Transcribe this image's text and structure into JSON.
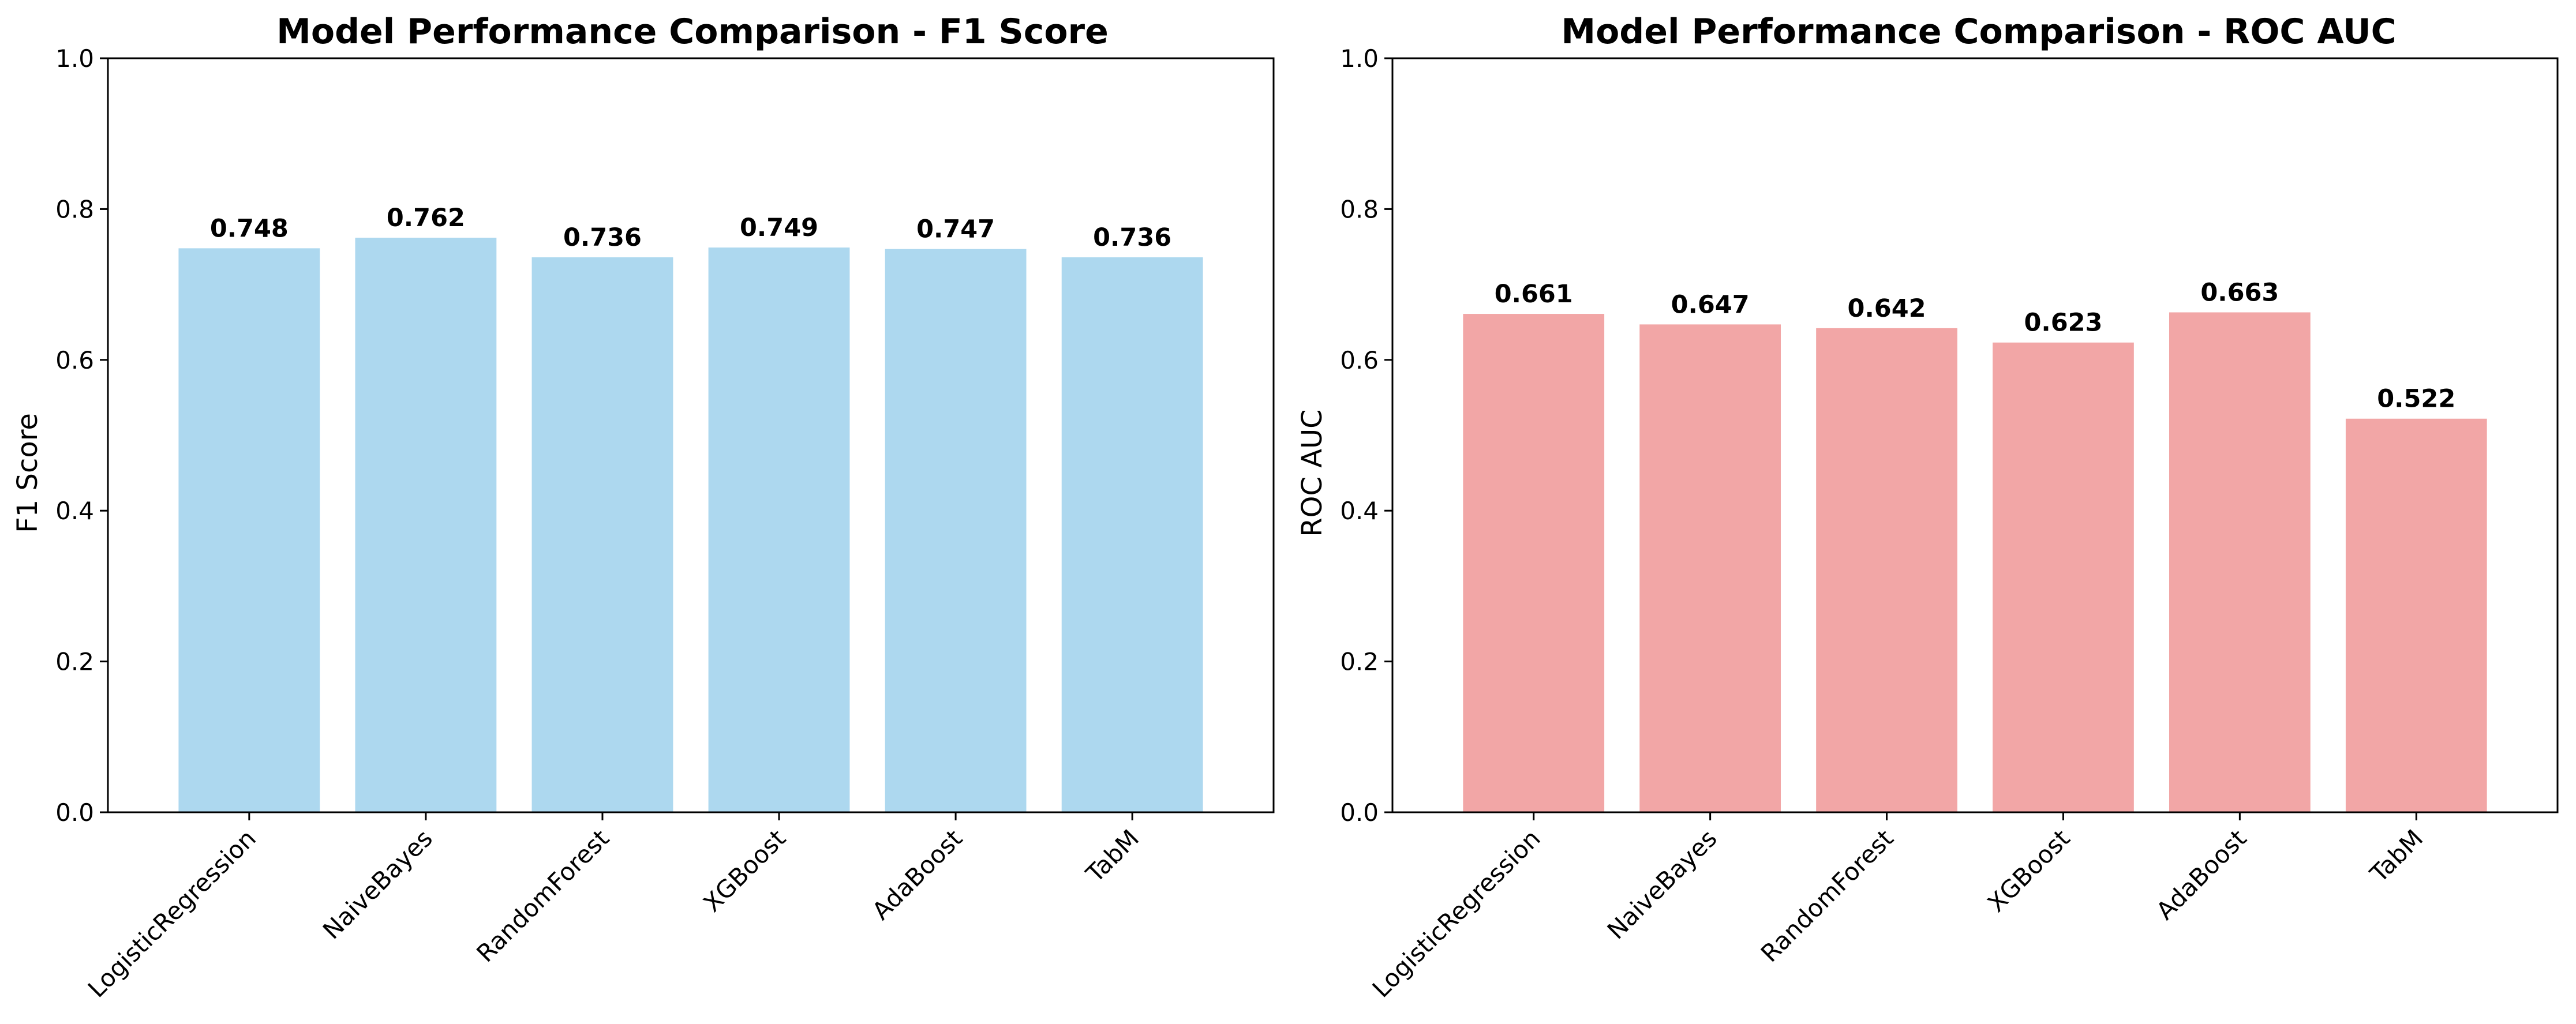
{
  "chart_data": [
    {
      "type": "bar",
      "title": "Model Performance Comparison - F1 Score",
      "xlabel": "",
      "ylabel": "F1 Score",
      "categories": [
        "LogisticRegression",
        "NaiveBayes",
        "RandomForest",
        "XGBoost",
        "AdaBoost",
        "TabM"
      ],
      "values": [
        0.748,
        0.762,
        0.736,
        0.749,
        0.747,
        0.736
      ],
      "data_labels": [
        "0.748",
        "0.762",
        "0.736",
        "0.749",
        "0.747",
        "0.736"
      ],
      "ylim": [
        0,
        1.0
      ],
      "yticks": [
        "0.0",
        "0.2",
        "0.4",
        "0.6",
        "0.8",
        "1.0"
      ],
      "yticks_values": [
        0,
        0.2,
        0.4,
        0.6,
        0.8,
        1.0
      ],
      "bar_color": "#add8ef",
      "grid": false,
      "xtick_rotation": 45
    },
    {
      "type": "bar",
      "title": "Model Performance Comparison - ROC AUC",
      "xlabel": "",
      "ylabel": "ROC AUC",
      "categories": [
        "LogisticRegression",
        "NaiveBayes",
        "RandomForest",
        "XGBoost",
        "AdaBoost",
        "TabM"
      ],
      "values": [
        0.661,
        0.647,
        0.642,
        0.623,
        0.663,
        0.522
      ],
      "data_labels": [
        "0.661",
        "0.647",
        "0.642",
        "0.623",
        "0.663",
        "0.522"
      ],
      "ylim": [
        0,
        1.0
      ],
      "yticks": [
        "0.0",
        "0.2",
        "0.4",
        "0.6",
        "0.8",
        "1.0"
      ],
      "yticks_values": [
        0,
        0.2,
        0.4,
        0.6,
        0.8,
        1.0
      ],
      "bar_color": "#f2a6a6",
      "grid": false,
      "xtick_rotation": 45
    }
  ]
}
